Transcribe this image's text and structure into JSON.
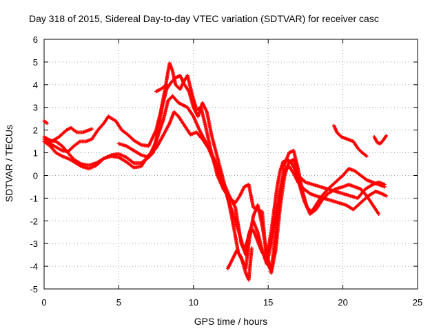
{
  "chart_data": {
    "type": "scatter",
    "title": "Day 318 of 2015, Sidereal Day-to-day VTEC variation (SDTVAR) for receiver casc",
    "xlabel": "GPS time / hours",
    "ylabel": "SDTVAR / TECUs",
    "xlim": [
      0,
      25
    ],
    "ylim": [
      -5,
      6
    ],
    "xticks": [
      "0",
      "5",
      "10",
      "15",
      "20",
      "25"
    ],
    "yticks": [
      "-5",
      "-4",
      "-3",
      "-2",
      "-1",
      "0",
      "1",
      "2",
      "3",
      "4",
      "5",
      "6"
    ],
    "grid": true,
    "marker": "+",
    "color": "#ff0000",
    "series": [
      {
        "points": [
          [
            0.0,
            2.4
          ],
          [
            0.1,
            2.35
          ],
          [
            0.2,
            2.3
          ]
        ]
      },
      {
        "points": [
          [
            0.0,
            1.7
          ],
          [
            0.4,
            1.55
          ],
          [
            0.8,
            1.5
          ],
          [
            1.2,
            1.3
          ],
          [
            1.6,
            1.0
          ],
          [
            2.0,
            0.7
          ],
          [
            2.5,
            0.5
          ],
          [
            3.0,
            0.45
          ],
          [
            3.5,
            0.55
          ],
          [
            4.0,
            0.75
          ],
          [
            4.5,
            0.9
          ],
          [
            5.0,
            0.95
          ],
          [
            5.5,
            0.8
          ],
          [
            6.0,
            0.55
          ],
          [
            6.5,
            0.55
          ],
          [
            7.0,
            0.8
          ],
          [
            7.5,
            1.5
          ],
          [
            8.0,
            2.5
          ],
          [
            8.3,
            3.3
          ],
          [
            8.6,
            3.5
          ],
          [
            9.0,
            3.2
          ],
          [
            9.3,
            3.1
          ],
          [
            9.6,
            3.0
          ],
          [
            10.0,
            2.6
          ],
          [
            10.4,
            2.0
          ],
          [
            10.8,
            1.5
          ],
          [
            11.2,
            1.0
          ],
          [
            11.6,
            0.4
          ],
          [
            12.0,
            -0.3
          ],
          [
            12.4,
            -0.9
          ],
          [
            12.8,
            -1.4
          ],
          [
            13.0,
            -2.2
          ],
          [
            13.2,
            -3.0
          ],
          [
            13.4,
            -3.3
          ],
          [
            13.6,
            -2.9
          ],
          [
            13.8,
            -2.5
          ],
          [
            14.0,
            -2.4
          ],
          [
            14.3,
            -2.9
          ],
          [
            14.6,
            -3.4
          ],
          [
            14.9,
            -3.6
          ],
          [
            15.2,
            -2.5
          ],
          [
            15.4,
            -1.5
          ],
          [
            15.6,
            -0.5
          ],
          [
            15.8,
            0.2
          ],
          [
            16.0,
            0.6
          ],
          [
            16.3,
            0.7
          ],
          [
            16.6,
            0.5
          ],
          [
            17.0,
            0.0
          ],
          [
            17.5,
            -0.3
          ],
          [
            18.0,
            -0.4
          ],
          [
            18.5,
            -0.5
          ],
          [
            19.0,
            -0.6
          ],
          [
            19.5,
            -0.7
          ],
          [
            20.0,
            -0.8
          ],
          [
            20.5,
            -0.9
          ],
          [
            21.0,
            -1.0
          ],
          [
            21.5,
            -0.6
          ],
          [
            22.0,
            -0.4
          ],
          [
            22.4,
            -0.3
          ],
          [
            22.8,
            -0.4
          ]
        ]
      },
      {
        "points": [
          [
            0.0,
            1.5
          ],
          [
            0.4,
            1.3
          ],
          [
            0.8,
            1.0
          ],
          [
            1.2,
            0.85
          ],
          [
            1.6,
            0.75
          ],
          [
            2.0,
            0.6
          ],
          [
            2.5,
            0.4
          ],
          [
            3.0,
            0.3
          ],
          [
            3.5,
            0.45
          ],
          [
            4.0,
            0.75
          ],
          [
            4.5,
            0.85
          ],
          [
            5.0,
            0.8
          ],
          [
            5.5,
            0.6
          ],
          [
            6.0,
            0.35
          ],
          [
            6.5,
            0.4
          ],
          [
            7.0,
            0.9
          ],
          [
            7.5,
            1.2
          ],
          [
            8.0,
            1.8
          ],
          [
            8.4,
            2.3
          ],
          [
            8.7,
            2.8
          ],
          [
            9.0,
            2.6
          ],
          [
            9.4,
            2.2
          ],
          [
            9.8,
            1.8
          ],
          [
            10.2,
            1.9
          ],
          [
            10.6,
            1.6
          ],
          [
            11.0,
            1.2
          ],
          [
            11.4,
            0.6
          ],
          [
            11.8,
            -0.1
          ],
          [
            12.2,
            -0.8
          ],
          [
            12.6,
            -1.6
          ],
          [
            13.0,
            -2.4
          ],
          [
            13.3,
            -3.1
          ],
          [
            13.5,
            -3.5
          ],
          [
            13.7,
            -2.6
          ],
          [
            14.0,
            -2.0
          ],
          [
            14.3,
            -2.5
          ],
          [
            14.6,
            -3.3
          ],
          [
            14.9,
            -3.9
          ],
          [
            15.2,
            -3.0
          ],
          [
            15.5,
            -1.8
          ],
          [
            15.8,
            -0.6
          ],
          [
            16.1,
            0.2
          ],
          [
            16.4,
            0.4
          ],
          [
            16.7,
            0.1
          ],
          [
            17.0,
            -0.3
          ],
          [
            17.4,
            -0.6
          ],
          [
            17.8,
            -0.8
          ],
          [
            18.2,
            -0.9
          ],
          [
            18.7,
            -1.0
          ],
          [
            19.2,
            -1.1
          ],
          [
            19.7,
            -1.2
          ],
          [
            20.2,
            -1.3
          ],
          [
            20.7,
            -1.5
          ],
          [
            21.2,
            -1.2
          ],
          [
            21.7,
            -0.9
          ],
          [
            22.2,
            -0.7
          ],
          [
            22.6,
            -0.8
          ],
          [
            22.9,
            -0.9
          ]
        ]
      },
      {
        "points": [
          [
            0.0,
            1.6
          ],
          [
            0.5,
            1.5
          ],
          [
            1.0,
            1.7
          ],
          [
            1.5,
            2.0
          ],
          [
            1.8,
            2.1
          ],
          [
            2.2,
            1.9
          ],
          [
            2.6,
            1.9
          ],
          [
            3.0,
            2.0
          ],
          [
            3.2,
            2.05
          ]
        ]
      },
      {
        "points": [
          [
            0.0,
            1.5
          ],
          [
            0.4,
            1.4
          ],
          [
            0.8,
            1.25
          ],
          [
            1.2,
            1.1
          ],
          [
            1.6,
            1.05
          ],
          [
            2.0,
            1.3
          ],
          [
            2.4,
            1.5
          ],
          [
            2.8,
            1.5
          ],
          [
            3.2,
            1.6
          ],
          [
            3.6,
            2.0
          ],
          [
            4.0,
            2.3
          ],
          [
            4.3,
            2.6
          ]
        ]
      },
      {
        "points": [
          [
            4.3,
            2.6
          ],
          [
            4.8,
            2.4
          ],
          [
            5.2,
            2.0
          ],
          [
            5.6,
            1.8
          ],
          [
            6.0,
            1.55
          ],
          [
            6.5,
            1.35
          ],
          [
            7.0,
            1.3
          ],
          [
            7.5,
            2.0
          ],
          [
            7.8,
            2.8
          ],
          [
            8.1,
            3.8
          ],
          [
            8.3,
            4.6
          ],
          [
            8.4,
            4.95
          ],
          [
            8.6,
            4.6
          ],
          [
            8.8,
            4.0
          ],
          [
            9.1,
            3.8
          ],
          [
            9.4,
            4.2
          ],
          [
            9.6,
            4.4
          ],
          [
            9.9,
            3.6
          ],
          [
            10.2,
            2.9
          ],
          [
            10.5,
            3.0
          ],
          [
            10.8,
            2.2
          ],
          [
            11.2,
            1.0
          ],
          [
            11.6,
            0.0
          ],
          [
            12.0,
            -0.6
          ],
          [
            12.4,
            -1.0
          ],
          [
            12.8,
            -1.2
          ],
          [
            13.1,
            -0.9
          ],
          [
            13.4,
            -0.5
          ],
          [
            13.7,
            -0.4
          ],
          [
            14.0,
            -1.4
          ],
          [
            14.3,
            -1.5
          ],
          [
            14.6,
            -1.6
          ],
          [
            14.9,
            -3.8
          ],
          [
            15.2,
            -4.2
          ],
          [
            15.5,
            -2.6
          ],
          [
            15.8,
            -0.9
          ],
          [
            16.1,
            0.5
          ],
          [
            16.4,
            1.0
          ],
          [
            16.7,
            1.1
          ],
          [
            17.0,
            0.3
          ],
          [
            17.3,
            -0.7
          ],
          [
            17.6,
            -1.4
          ],
          [
            17.9,
            -1.6
          ],
          [
            18.2,
            -1.3
          ],
          [
            18.6,
            -0.9
          ],
          [
            19.0,
            -0.6
          ],
          [
            19.5,
            -0.3
          ],
          [
            20.0,
            0.0
          ],
          [
            20.4,
            0.3
          ],
          [
            20.8,
            0.2
          ],
          [
            21.2,
            0.0
          ],
          [
            21.6,
            -0.2
          ],
          [
            22.0,
            -0.3
          ],
          [
            22.4,
            -0.4
          ],
          [
            22.8,
            -0.5
          ]
        ]
      },
      {
        "points": [
          [
            5.0,
            1.4
          ],
          [
            5.5,
            1.3
          ],
          [
            6.0,
            1.1
          ],
          [
            6.5,
            0.9
          ],
          [
            7.0,
            0.8
          ],
          [
            7.3,
            1.0
          ],
          [
            7.6,
            1.9
          ],
          [
            7.9,
            3.0
          ],
          [
            8.2,
            3.8
          ],
          [
            8.5,
            4.1
          ],
          [
            8.8,
            4.3
          ],
          [
            9.1,
            4.4
          ],
          [
            9.4,
            4.0
          ],
          [
            9.7,
            3.7
          ],
          [
            10.0,
            3.0
          ],
          [
            10.3,
            2.6
          ],
          [
            10.6,
            3.2
          ],
          [
            10.9,
            2.8
          ],
          [
            11.2,
            1.8
          ],
          [
            11.6,
            0.8
          ],
          [
            12.0,
            -0.2
          ],
          [
            12.4,
            -1.3
          ],
          [
            12.7,
            -2.3
          ],
          [
            13.0,
            -3.4
          ],
          [
            13.3,
            -3.8
          ],
          [
            13.5,
            -4.1
          ],
          [
            13.7,
            -3.0
          ],
          [
            14.0,
            -1.8
          ],
          [
            14.3,
            -1.3
          ],
          [
            14.6,
            -2.2
          ],
          [
            14.9,
            -3.4
          ],
          [
            15.2,
            -4.3
          ],
          [
            15.5,
            -3.3
          ],
          [
            15.8,
            -1.4
          ],
          [
            16.1,
            0.0
          ],
          [
            16.4,
            0.6
          ],
          [
            16.7,
            0.7
          ],
          [
            17.0,
            -0.2
          ],
          [
            17.4,
            -1.1
          ],
          [
            17.8,
            -1.7
          ],
          [
            18.2,
            -1.5
          ],
          [
            18.6,
            -1.1
          ],
          [
            19.0,
            -0.8
          ],
          [
            19.5,
            -0.6
          ],
          [
            20.0,
            -0.5
          ],
          [
            20.4,
            -0.4
          ],
          [
            20.8,
            -0.5
          ],
          [
            21.2,
            -0.6
          ],
          [
            21.6,
            -0.9
          ],
          [
            22.0,
            -1.3
          ],
          [
            22.4,
            -1.7
          ]
        ]
      },
      {
        "points": [
          [
            12.3,
            -4.1
          ],
          [
            12.6,
            -3.7
          ],
          [
            12.9,
            -3.3
          ],
          [
            13.2,
            -3.6
          ],
          [
            13.5,
            -4.3
          ],
          [
            13.7,
            -4.6
          ],
          [
            13.9,
            -3.2
          ]
        ]
      },
      {
        "points": [
          [
            7.5,
            3.7
          ],
          [
            7.8,
            3.8
          ],
          [
            8.0,
            3.9
          ],
          [
            8.2,
            4.0
          ]
        ]
      },
      {
        "points": [
          [
            19.4,
            2.2
          ],
          [
            19.6,
            1.9
          ],
          [
            19.9,
            1.7
          ],
          [
            20.3,
            1.6
          ],
          [
            20.7,
            1.5
          ],
          [
            21.0,
            1.2
          ],
          [
            21.3,
            1.0
          ],
          [
            21.6,
            0.85
          ]
        ]
      },
      {
        "points": [
          [
            22.1,
            1.7
          ],
          [
            22.3,
            1.45
          ],
          [
            22.5,
            1.4
          ],
          [
            22.7,
            1.55
          ],
          [
            22.9,
            1.75
          ]
        ]
      }
    ]
  }
}
